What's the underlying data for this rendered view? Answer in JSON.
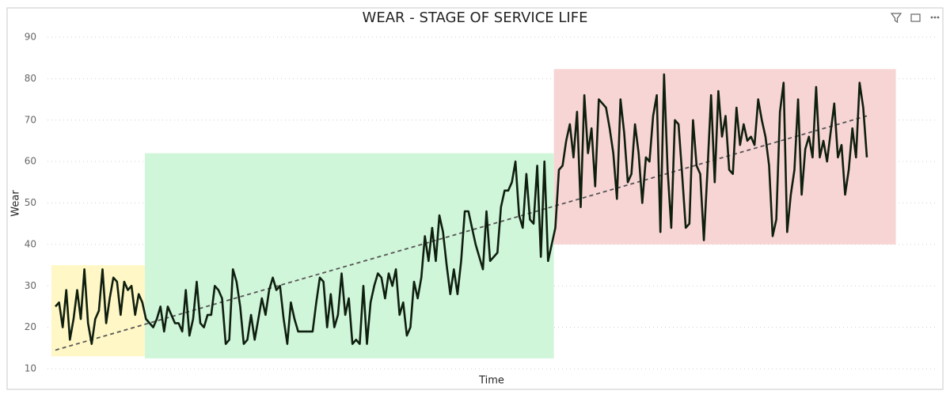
{
  "chart_data": {
    "type": "line",
    "title": "WEAR - STAGE OF SERVICE LIFE",
    "x_label": "Time",
    "y_label": "Wear",
    "ylim": [
      10,
      90
    ],
    "yticks": [
      10,
      20,
      30,
      40,
      50,
      60,
      70,
      80,
      90
    ],
    "grid": true,
    "color": "#0f1f0f",
    "trendline": {
      "start": 14.5,
      "end": 71,
      "color": "#555555"
    },
    "zones": [
      {
        "color": "#fff7c2",
        "xlim": [
          -1.1,
          24.7
        ],
        "ylim": [
          13,
          35
        ]
      },
      {
        "color": "#cef5d8",
        "xlim": [
          24.7,
          137.6
        ],
        "ylim": [
          12.5,
          62
        ]
      },
      {
        "color": "#f8d3d3",
        "xlim": [
          137.6,
          232
        ],
        "ylim": [
          40,
          82.3
        ]
      }
    ],
    "values": [
      25,
      26,
      20,
      29,
      17,
      22,
      29,
      22,
      34,
      21,
      16,
      22,
      24,
      34,
      21,
      27,
      32,
      31,
      23,
      31,
      29,
      30,
      23,
      28,
      26,
      22,
      21,
      20,
      22,
      25,
      19,
      25,
      23,
      21,
      21,
      19,
      29,
      18,
      22,
      31,
      21,
      20,
      23,
      23,
      30,
      29,
      27,
      16,
      17,
      34,
      31,
      25,
      16,
      17,
      23,
      17,
      22,
      27,
      23,
      29,
      32,
      29,
      30,
      22,
      16,
      26,
      22,
      19,
      19,
      19,
      19,
      19,
      26,
      32,
      31,
      20,
      28,
      20,
      23,
      33,
      23,
      27,
      16,
      17,
      16,
      30,
      16,
      26,
      30,
      33,
      32,
      27,
      33,
      30,
      34,
      23,
      26,
      18,
      20,
      31,
      27,
      32,
      42,
      36,
      44,
      36,
      47,
      43,
      35,
      28,
      34,
      28,
      36,
      48,
      48,
      44,
      40,
      37,
      34,
      48,
      36,
      37,
      38,
      49,
      53,
      53,
      55,
      60,
      47,
      44,
      57,
      46,
      45,
      59,
      37,
      60,
      36,
      40,
      44,
      58,
      59,
      65,
      69,
      61,
      72,
      49,
      76,
      62,
      68,
      54,
      75,
      74,
      73,
      68,
      62,
      51,
      75,
      67,
      55,
      57,
      69,
      62,
      50,
      61,
      60,
      71,
      76,
      43,
      81,
      58,
      44,
      70,
      69,
      57,
      44,
      45,
      70,
      59,
      57,
      41,
      58,
      76,
      55,
      77,
      66,
      71,
      58,
      57,
      73,
      64,
      69,
      65,
      66,
      64,
      75,
      70,
      66,
      59,
      42,
      46,
      72,
      79,
      43,
      52,
      58,
      75,
      52,
      63,
      66,
      61,
      78,
      61,
      65,
      60,
      67,
      74,
      61,
      64,
      52,
      58,
      68,
      61,
      79,
      73,
      61
    ]
  }
}
